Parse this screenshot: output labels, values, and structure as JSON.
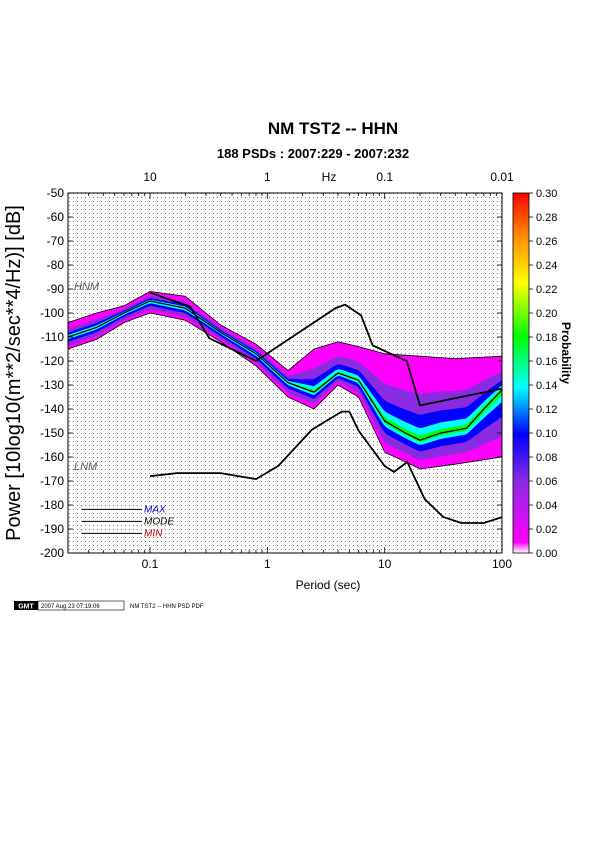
{
  "chart_data": {
    "type": "heatmap",
    "title": "NM TST2 -- HHN",
    "subtitle": "188 PSDs : 2007:229 - 2007:232",
    "xlabel": "Period (sec)",
    "ylabel": "Power [10log10(m**2/sec**4/Hz)] [dB]",
    "top_axis_label": "Hz",
    "x_scale": "log",
    "xlim": [
      0.02,
      100
    ],
    "ylim": [
      -200,
      -50
    ],
    "x_ticks": [
      {
        "value": 0.1,
        "label": "0.1"
      },
      {
        "value": 1,
        "label": "1"
      },
      {
        "value": 10,
        "label": "10"
      },
      {
        "value": 100,
        "label": "100"
      }
    ],
    "top_ticks": [
      {
        "period": 0.1,
        "label": "10"
      },
      {
        "period": 1,
        "label": "1"
      },
      {
        "period": 10,
        "label": "0.1"
      },
      {
        "period": 100,
        "label": "0.01"
      }
    ],
    "y_ticks": [
      -50,
      -60,
      -70,
      -80,
      -90,
      -100,
      -110,
      -120,
      -130,
      -140,
      -150,
      -160,
      -170,
      -180,
      -190,
      -200
    ],
    "colorbar": {
      "label": "Probability",
      "range": [
        0,
        0.3
      ],
      "ticks": [
        "0.30",
        "0.28",
        "0.26",
        "0.24",
        "0.22",
        "0.20",
        "0.18",
        "0.16",
        "0.14",
        "0.12",
        "0.10",
        "0.08",
        "0.06",
        "0.04",
        "0.02",
        "0.00"
      ],
      "colors": [
        "#ffffff",
        "#ff00ff",
        "#8a2be2",
        "#0000ff",
        "#00ffff",
        "#00ff00",
        "#ffff00",
        "#ff8c00",
        "#ff0000"
      ]
    },
    "noise_models": {
      "high_label": "HNM",
      "low_label": "LNM"
    },
    "series": [
      {
        "name": "HNM",
        "x": [
          0.1,
          0.22,
          0.32,
          0.8,
          3.8,
          4.6,
          6.3,
          7.9,
          15.4,
          20,
          354.8
        ],
        "y": [
          -91.5,
          -97.4,
          -110.5,
          -120,
          -98,
          -96.5,
          -101,
          -113.5,
          -120,
          -138.5,
          -126
        ]
      },
      {
        "name": "LNM",
        "x": [
          0.1,
          0.17,
          0.4,
          0.8,
          1.24,
          2.4,
          4.3,
          5,
          6,
          10,
          12,
          15.6,
          21.9,
          31.6,
          45,
          70,
          101
        ],
        "y": [
          -168,
          -166.7,
          -166.7,
          -169.2,
          -163.7,
          -148.6,
          -141.1,
          -141.1,
          -149,
          -163.8,
          -166.2,
          -162.1,
          -177.5,
          -185,
          -187.5,
          -187.5,
          -185
        ]
      },
      {
        "name": "MAX",
        "x": [
          0.02,
          0.035,
          0.06,
          0.1,
          0.2,
          0.4,
          0.8,
          1.5,
          2.5,
          4,
          6,
          10,
          20,
          40,
          100
        ],
        "y": [
          -104,
          -100,
          -97,
          -91,
          -93,
          -105,
          -113,
          -124,
          -115,
          -112,
          -114,
          -117,
          -118,
          -119,
          -118
        ]
      },
      {
        "name": "MODE",
        "x": [
          0.02,
          0.035,
          0.06,
          0.1,
          0.2,
          0.4,
          0.8,
          1.5,
          2.5,
          4,
          6,
          10,
          15,
          20,
          30,
          50,
          70,
          100
        ],
        "y": [
          -110,
          -106,
          -100,
          -95,
          -98,
          -108,
          -117,
          -129,
          -133,
          -125,
          -128,
          -145,
          -150,
          -153,
          -150,
          -148,
          -140,
          -132
        ]
      },
      {
        "name": "MIN",
        "x": [
          0.02,
          0.035,
          0.06,
          0.1,
          0.2,
          0.4,
          0.8,
          1.5,
          2.5,
          4,
          6,
          10,
          15,
          20,
          40,
          100
        ],
        "y": [
          -115,
          -111,
          -104,
          -100,
          -103,
          -112,
          -122,
          -135,
          -140,
          -130,
          -135,
          -158,
          -162,
          -165,
          -163,
          -160
        ]
      }
    ],
    "legend": [
      "MAX",
      "MODE",
      "MIN"
    ],
    "legend_colors": [
      "#0000cc",
      "#000000",
      "#cc0000"
    ]
  },
  "footer": {
    "logo": "GMT",
    "timestamp": "2007 Aug 23 07:19:06",
    "caption": "NM TST2 -- HHN PSD PDF"
  }
}
